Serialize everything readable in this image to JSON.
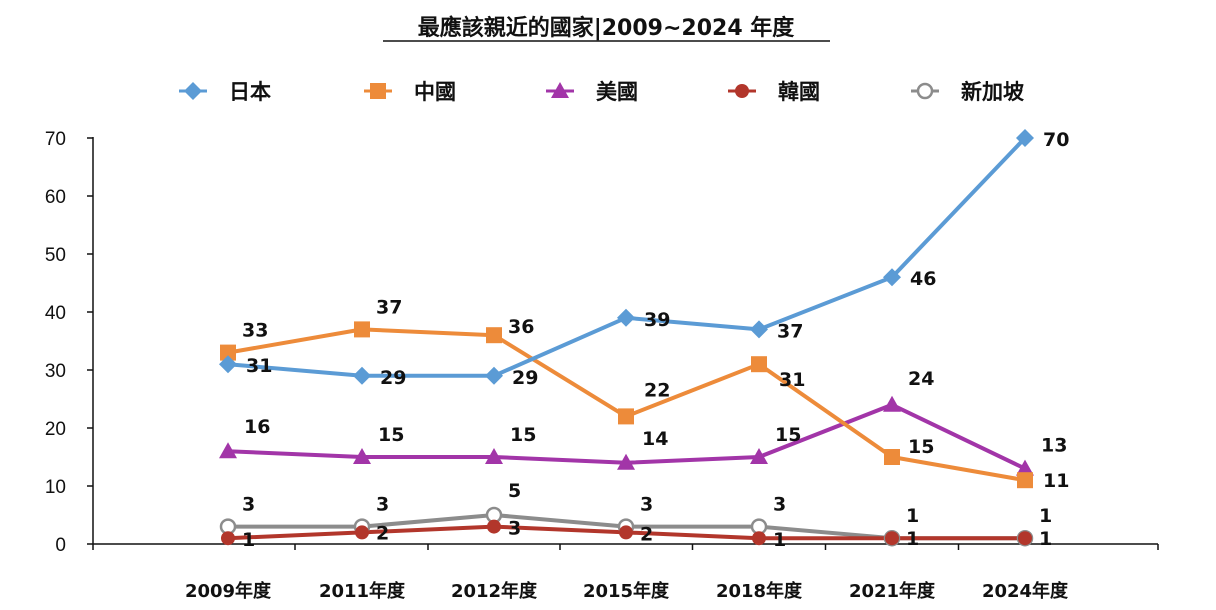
{
  "chart_data": {
    "type": "line",
    "title": "最應該親近的國家|2009~2024 年度",
    "categories": [
      "2009年度",
      "2011年度",
      "2012年度",
      "2015年度",
      "2018年度",
      "2021年度",
      "2024年度"
    ],
    "ylim": [
      0,
      70
    ],
    "yticks": [
      0,
      10,
      20,
      30,
      40,
      50,
      60,
      70
    ],
    "grid": false,
    "legend": "top",
    "series": [
      {
        "name": "日本",
        "values": [
          31,
          29,
          29,
          39,
          37,
          46,
          70
        ],
        "color": "#5B9BD5",
        "marker": "diamond"
      },
      {
        "name": "中國",
        "values": [
          33,
          37,
          36,
          22,
          31,
          15,
          11
        ],
        "color": "#ED8B3A",
        "marker": "square"
      },
      {
        "name": "美國",
        "values": [
          16,
          15,
          15,
          14,
          15,
          24,
          13
        ],
        "color": "#A235A8",
        "marker": "triangle"
      },
      {
        "name": "韓國",
        "values": [
          1,
          2,
          3,
          2,
          1,
          1,
          1
        ],
        "color": "#B2362B",
        "marker": "circle"
      },
      {
        "name": "新加坡",
        "values": [
          3,
          3,
          5,
          3,
          3,
          1,
          1
        ],
        "color": "#8C8C8C",
        "marker": "open-circle"
      }
    ]
  }
}
